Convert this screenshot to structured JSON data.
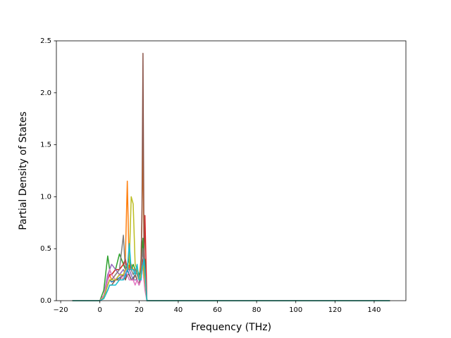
{
  "chart_data": {
    "type": "line",
    "xlabel": "Frequency (THz)",
    "ylabel": "Partial Density of States",
    "x": [
      -14,
      0,
      2,
      4,
      5,
      6,
      8,
      10,
      12,
      13,
      14,
      15,
      16,
      17,
      18,
      19,
      20,
      21,
      21.5,
      22,
      22.5,
      23,
      24,
      25,
      148
    ],
    "series": [
      {
        "color": "#1f77b4",
        "values": [
          0,
          0,
          0.05,
          0.15,
          0.2,
          0.18,
          0.2,
          0.22,
          0.25,
          0.2,
          0.3,
          0.25,
          0.2,
          0.22,
          0.25,
          0.2,
          0.15,
          0.3,
          0.5,
          0.6,
          0.3,
          0.2,
          0,
          0,
          0
        ]
      },
      {
        "color": "#ff7f0e",
        "values": [
          0,
          0,
          0.05,
          0.2,
          0.25,
          0.2,
          0.25,
          0.3,
          0.35,
          0.4,
          1.15,
          0.3,
          0.35,
          0.3,
          0.3,
          0.25,
          0.2,
          0.4,
          0.8,
          1.55,
          0.5,
          0.2,
          0,
          0,
          0
        ]
      },
      {
        "color": "#2ca02c",
        "values": [
          0,
          0,
          0.1,
          0.43,
          0.3,
          0.25,
          0.3,
          0.45,
          0.35,
          0.3,
          0.35,
          0.4,
          0.3,
          0.35,
          0.3,
          0.3,
          0.25,
          0.3,
          0.5,
          0.6,
          0.3,
          0.4,
          0,
          0,
          0
        ]
      },
      {
        "color": "#d62728",
        "values": [
          0,
          0,
          0.05,
          0.2,
          0.25,
          0.25,
          0.3,
          0.3,
          0.35,
          0.4,
          0.3,
          0.35,
          0.3,
          0.3,
          0.25,
          0.3,
          0.2,
          0.25,
          0.3,
          0.4,
          0.3,
          0.82,
          0,
          0,
          0
        ]
      },
      {
        "color": "#9467bd",
        "values": [
          0,
          0,
          0.05,
          0.25,
          0.3,
          0.35,
          0.3,
          0.25,
          0.3,
          0.25,
          0.3,
          0.3,
          0.25,
          0.2,
          0.2,
          0.2,
          0.15,
          0.2,
          0.3,
          0.35,
          0.2,
          0.15,
          0,
          0,
          0
        ]
      },
      {
        "color": "#8c564b",
        "values": [
          0,
          0,
          0.02,
          0.1,
          0.15,
          0.15,
          0.2,
          0.2,
          0.25,
          0.2,
          0.25,
          0.25,
          0.2,
          0.2,
          0.25,
          0.2,
          0.15,
          0.3,
          0.9,
          2.38,
          0.6,
          0.2,
          0,
          0,
          0
        ]
      },
      {
        "color": "#e377c2",
        "values": [
          0,
          0,
          0.05,
          0.2,
          0.3,
          0.25,
          0.2,
          0.25,
          0.2,
          0.3,
          0.25,
          0.2,
          0.2,
          0.2,
          0.15,
          0.2,
          0.15,
          0.2,
          0.3,
          0.3,
          0.2,
          0.1,
          0,
          0,
          0
        ]
      },
      {
        "color": "#7f7f7f",
        "values": [
          0,
          0,
          0.03,
          0.15,
          0.2,
          0.2,
          0.25,
          0.3,
          0.63,
          0.3,
          0.35,
          0.3,
          0.3,
          0.25,
          0.3,
          0.25,
          0.2,
          0.3,
          0.4,
          0.5,
          0.3,
          0.2,
          0,
          0,
          0
        ]
      },
      {
        "color": "#bcbd22",
        "values": [
          0,
          0,
          0.03,
          0.15,
          0.2,
          0.2,
          0.2,
          0.25,
          0.25,
          0.3,
          0.3,
          0.35,
          1.0,
          0.93,
          0.35,
          0.3,
          0.2,
          0.25,
          0.3,
          0.35,
          0.25,
          0.2,
          0,
          0,
          0
        ]
      },
      {
        "color": "#17becf",
        "values": [
          0,
          0,
          0.02,
          0.1,
          0.15,
          0.15,
          0.15,
          0.2,
          0.2,
          0.25,
          0.3,
          0.55,
          0.3,
          0.3,
          0.25,
          0.35,
          0.2,
          0.2,
          0.3,
          0.35,
          0.4,
          0.3,
          0,
          0,
          0
        ]
      }
    ],
    "xlim": [
      -22.2,
      156.2
    ],
    "xticks": [
      {
        "value": -20,
        "label": "−20"
      },
      0,
      20,
      40,
      60,
      80,
      100,
      120,
      140
    ],
    "ylim": [
      0,
      2.5
    ],
    "yticks": [
      {
        "value": 0,
        "label": "0.0"
      },
      0.5,
      {
        "value": 1,
        "label": "1.0"
      },
      1.5,
      {
        "value": 2,
        "label": "2.0"
      },
      2.5
    ],
    "grid": false
  }
}
